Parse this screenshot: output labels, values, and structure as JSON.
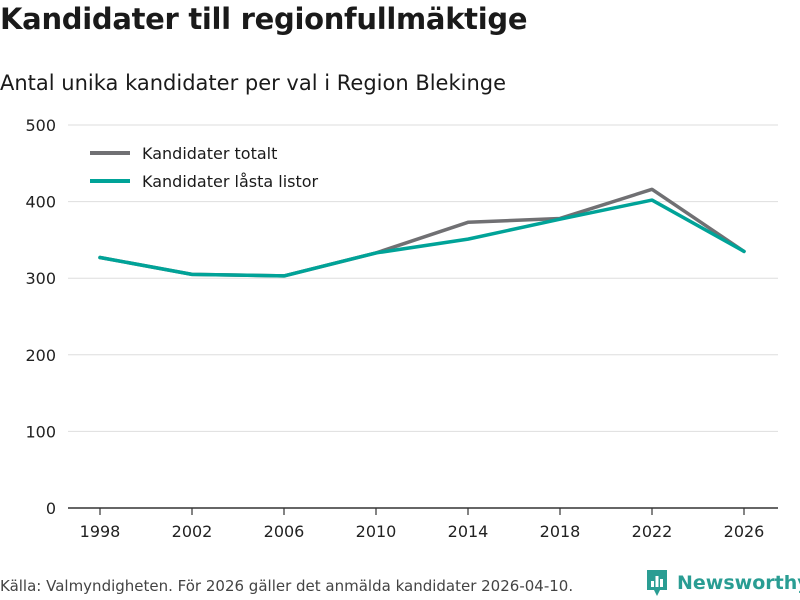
{
  "title": "Kandidater till regionfullmäktige",
  "subtitle": "Antal unika kandidater per val i Region Blekinge",
  "source": "Källa: Valmyndigheten. För 2026 gäller det anmälda kandidater 2026-04-10.",
  "brand": "Newsworthy",
  "colors": {
    "total": "#707073",
    "locked": "#00a398",
    "brand": "#2a9d93"
  },
  "chart_data": {
    "type": "line",
    "title": "Kandidater till regionfullmäktige",
    "subtitle": "Antal unika kandidater per val i Region Blekinge",
    "xlabel": "",
    "ylabel": "",
    "x": [
      "1998",
      "2002",
      "2006",
      "2010",
      "2014",
      "2018",
      "2022",
      "2026"
    ],
    "ylim": [
      0,
      500
    ],
    "yticks": [
      0,
      100,
      200,
      300,
      400,
      500
    ],
    "grid": true,
    "legend_position": "top-left",
    "series": [
      {
        "name": "Kandidater totalt",
        "color": "#707073",
        "values": [
          327,
          305,
          303,
          333,
          373,
          378,
          416,
          335
        ]
      },
      {
        "name": "Kandidater låsta listor",
        "color": "#00a398",
        "values": [
          327,
          305,
          303,
          333,
          351,
          377,
          402,
          335
        ]
      }
    ]
  }
}
